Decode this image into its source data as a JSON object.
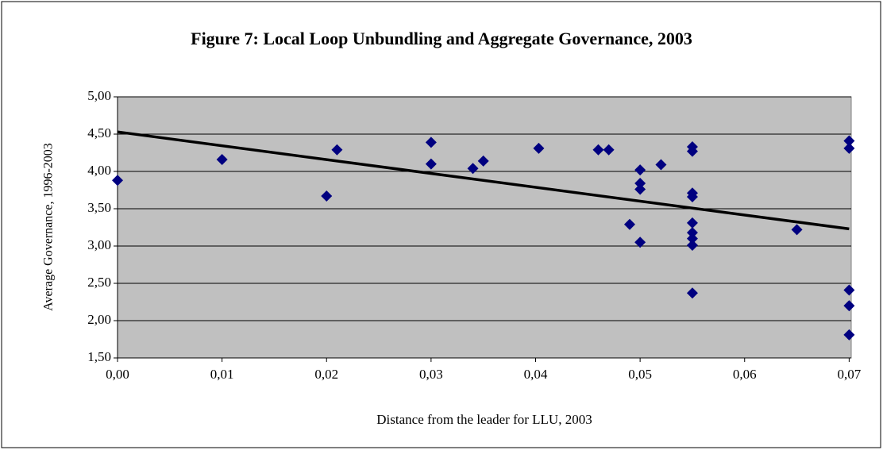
{
  "chart_data": {
    "type": "scatter",
    "title": "Figure 7: Local Loop Unbundling and Aggregate Governance, 2003",
    "x_label": "Distance from the leader for LLU, 2003",
    "y_label": "Average Governance, 1996-2003",
    "color": "#000080",
    "x": [
      0,
      0.01,
      0.02,
      0.021,
      0.03,
      0.03,
      0.034,
      0.035,
      0.0403,
      0.046,
      0.047,
      0.049,
      0.05,
      0.05,
      0.05,
      0.05,
      0.052,
      0.055,
      0.055,
      0.055,
      0.055,
      0.055,
      0.055,
      0.055,
      0.055,
      0.055,
      0.065,
      0.07,
      0.07,
      0.07,
      0.07,
      0.07
    ],
    "values": [
      3.88,
      4.16,
      3.67,
      4.29,
      4.39,
      4.1,
      4.04,
      4.14,
      4.31,
      4.29,
      4.29,
      3.29,
      4.02,
      3.84,
      3.76,
      3.05,
      4.09,
      4.33,
      4.27,
      3.71,
      3.66,
      3.31,
      3.18,
      3.1,
      3.01,
      2.37,
      3.22,
      4.41,
      4.31,
      2.41,
      2.2,
      1.81
    ],
    "trendline": {
      "x": [
        0,
        0.07
      ],
      "y": [
        4.53,
        3.23
      ],
      "color": "#000000"
    },
    "xlim": [
      0,
      0.0702
    ],
    "ylim": [
      1.5,
      5
    ],
    "xticks": [
      {
        "value": 0,
        "label": "0,00"
      },
      {
        "value": 0.01,
        "label": "0,01"
      },
      {
        "value": 0.02,
        "label": "0,02"
      },
      {
        "value": 0.03,
        "label": "0,03"
      },
      {
        "value": 0.04,
        "label": "0,04"
      },
      {
        "value": 0.05,
        "label": "0,05"
      },
      {
        "value": 0.06,
        "label": "0,06"
      },
      {
        "value": 0.07,
        "label": "0,07"
      }
    ],
    "yticks": [
      {
        "value": 1.5,
        "label": "1,50"
      },
      {
        "value": 2,
        "label": "2,00"
      },
      {
        "value": 2.5,
        "label": "2,50"
      },
      {
        "value": 3,
        "label": "3,00"
      },
      {
        "value": 3.5,
        "label": "3,50"
      },
      {
        "value": 4,
        "label": "4,00"
      },
      {
        "value": 4.5,
        "label": "4,50"
      },
      {
        "value": 5,
        "label": "5,00"
      }
    ],
    "grid": true
  }
}
